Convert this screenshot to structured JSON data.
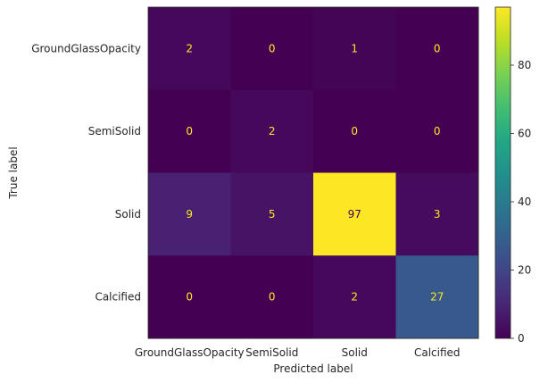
{
  "chart_data": {
    "type": "heatmap",
    "title": "",
    "xlabel": "Predicted label",
    "ylabel": "True label",
    "x_categories": [
      "GroundGlassOpacity",
      "SemiSolid",
      "Solid",
      "Calcified"
    ],
    "y_categories": [
      "GroundGlassOpacity",
      "SemiSolid",
      "Solid",
      "Calcified"
    ],
    "matrix": [
      [
        2,
        0,
        1,
        0
      ],
      [
        0,
        2,
        0,
        0
      ],
      [
        9,
        5,
        97,
        3
      ],
      [
        0,
        0,
        2,
        27
      ]
    ],
    "colormap": "viridis",
    "vmin": 0,
    "vmax": 97,
    "colorbar_ticks": [
      0,
      20,
      40,
      60,
      80
    ],
    "grid": false
  }
}
